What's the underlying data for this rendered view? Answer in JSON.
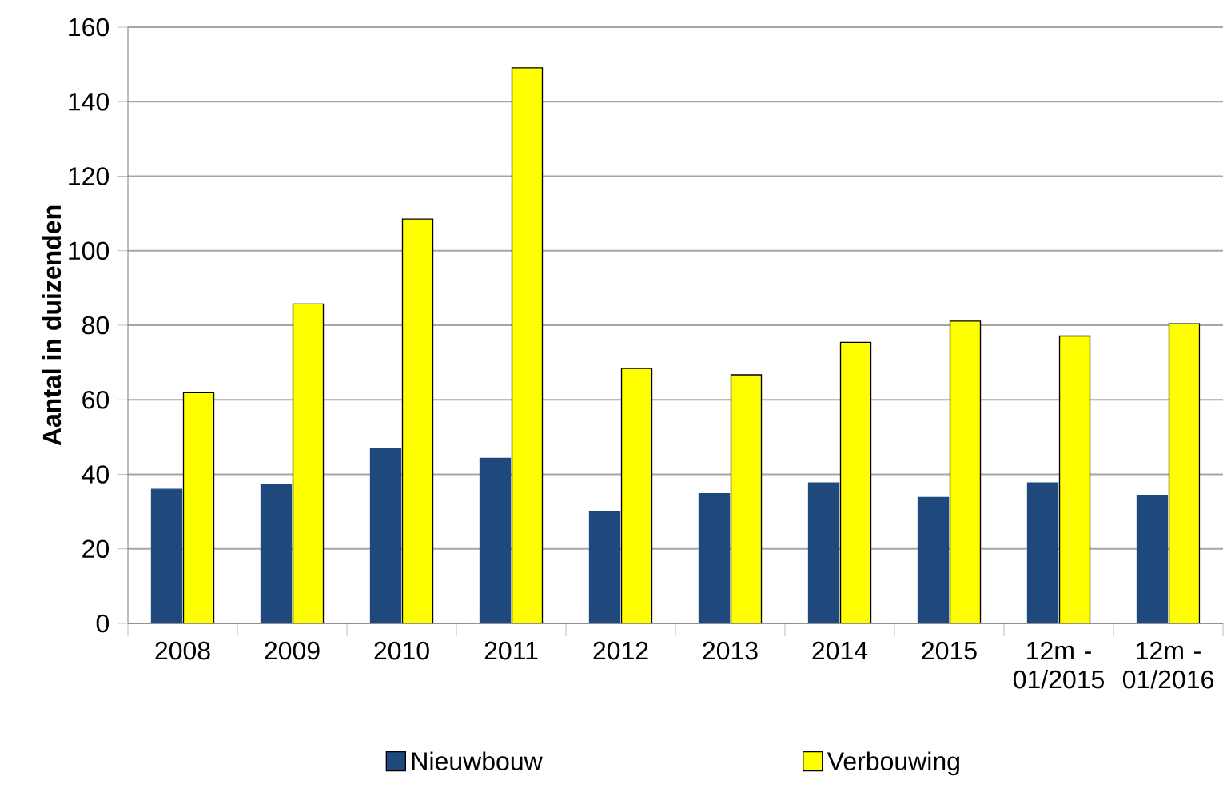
{
  "chart_data": {
    "type": "bar",
    "ylabel": "Aantal in duizenden",
    "categories": [
      "2008",
      "2009",
      "2010",
      "2011",
      "2012",
      "2013",
      "2014",
      "2015",
      "12m - 01/2015",
      "12m - 01/2016"
    ],
    "series": [
      {
        "name": "Nieuwbouw",
        "color": "#1f497d",
        "values": [
          36.0,
          37.4,
          46.9,
          44.3,
          30.1,
          34.8,
          37.7,
          33.8,
          37.7,
          34.3
        ]
      },
      {
        "name": "Verbouwing",
        "color": "#ffff00",
        "values": [
          61.9,
          85.7,
          108.5,
          149.1,
          68.4,
          66.7,
          75.4,
          81.1,
          77.1,
          80.4
        ]
      }
    ],
    "ylim": [
      0,
      160
    ],
    "yticks": [
      0,
      20,
      40,
      60,
      80,
      100,
      120,
      140,
      160
    ],
    "grid": "y",
    "legend": "bottom"
  }
}
